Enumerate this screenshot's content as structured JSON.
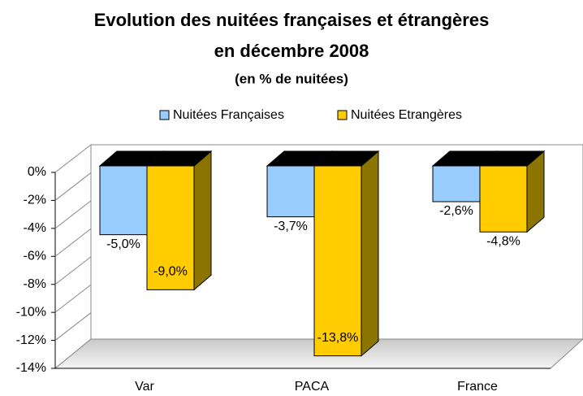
{
  "chart_data": {
    "type": "bar3d",
    "title": "Evolution des nuitées françaises et étrangères",
    "subtitle": "en décembre 2008",
    "unit_note": "(en % de nuitées)",
    "categories": [
      "Var",
      "PACA",
      "France"
    ],
    "series": [
      {
        "name": "Nuitées Françaises",
        "color": "#99ccff",
        "values": [
          -5.0,
          -3.7,
          -2.6
        ],
        "value_labels": [
          "-5,0%",
          "-3,7%",
          "-2,6%"
        ]
      },
      {
        "name": "Nuitées Etrangères",
        "color": "#ffcc00",
        "values": [
          -9.0,
          -13.8,
          -4.8
        ],
        "value_labels": [
          "-9,0%",
          "-13,8%",
          "-4,8%"
        ]
      }
    ],
    "ylim": [
      -14,
      0
    ],
    "yticks": [
      {
        "value": 0,
        "label": "0%"
      },
      {
        "value": -2,
        "label": "-2%"
      },
      {
        "value": -4,
        "label": "-4%"
      },
      {
        "value": -6,
        "label": "-6%"
      },
      {
        "value": -8,
        "label": "-8%"
      },
      {
        "value": -10,
        "label": "-10%"
      },
      {
        "value": -12,
        "label": "-12%"
      },
      {
        "value": -14,
        "label": "-14%"
      }
    ],
    "legend": "top",
    "grid": true
  }
}
